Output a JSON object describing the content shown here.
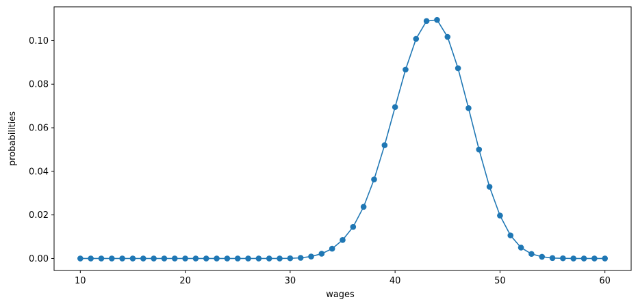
{
  "chart_data": {
    "type": "line",
    "title": "",
    "xlabel": "wages",
    "ylabel": "probabilities",
    "xlim": [
      7.5,
      62.5
    ],
    "ylim": [
      -0.0055,
      0.1155
    ],
    "grid": false,
    "legend": "none",
    "color": "#1f77b4",
    "marker": "circle",
    "x_ticks": [
      10,
      20,
      30,
      40,
      50,
      60
    ],
    "x_tick_labels": [
      "10",
      "20",
      "30",
      "40",
      "50",
      "60"
    ],
    "y_ticks": [
      0.0,
      0.02,
      0.04,
      0.06,
      0.08,
      0.1
    ],
    "y_tick_labels": [
      "0.00",
      "0.02",
      "0.04",
      "0.06",
      "0.08",
      "0.10"
    ],
    "series": [
      {
        "x": [
          10,
          11,
          12,
          13,
          14,
          15,
          16,
          17,
          18,
          19,
          20,
          21,
          22,
          23,
          24,
          25,
          26,
          27,
          28,
          29,
          30,
          31,
          32,
          33,
          34,
          35,
          36,
          37,
          38,
          39,
          40,
          41,
          42,
          43,
          44,
          45,
          46,
          47,
          48,
          49,
          50,
          51,
          52,
          53,
          54,
          55,
          56,
          57,
          58,
          59,
          60
        ],
        "y": [
          0.0,
          0.0,
          0.0,
          0.0,
          0.0,
          0.0,
          0.0,
          0.0,
          0.0,
          0.0,
          0.0,
          0.0,
          0.0,
          0.0,
          0.0,
          0.0,
          0.0,
          0.0,
          0.0,
          0.0,
          0.0001,
          0.0003,
          0.0009,
          0.0022,
          0.0045,
          0.0085,
          0.0145,
          0.0237,
          0.0363,
          0.052,
          0.0695,
          0.0867,
          0.1008,
          0.109,
          0.1095,
          0.1017,
          0.0873,
          0.069,
          0.05,
          0.0329,
          0.0197,
          0.0106,
          0.005,
          0.0021,
          0.0008,
          0.0002,
          0.0001,
          0.0,
          0.0,
          0.0,
          0.0
        ]
      }
    ]
  }
}
